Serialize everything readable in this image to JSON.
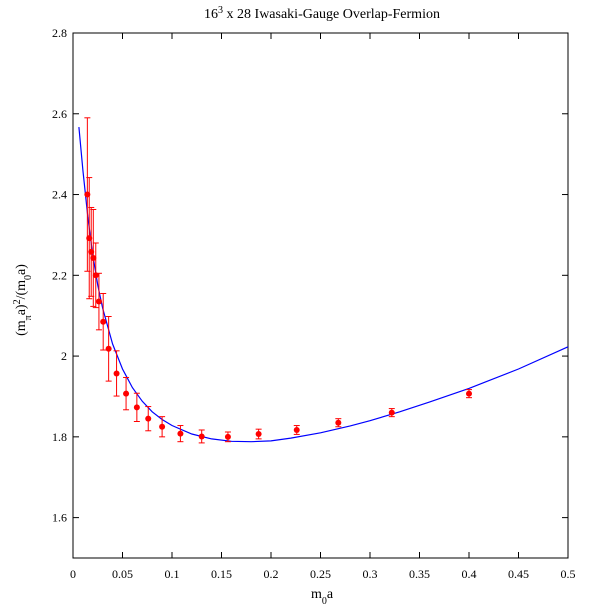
{
  "chart_data": {
    "type": "scatter",
    "title": {
      "base": "16",
      "sup": "3",
      "rest": " x 28 Iwasaki-Gauge Overlap-Fermion"
    },
    "xlabel": {
      "base": "m",
      "sub": "0",
      "rest": "a"
    },
    "ylabel": {
      "p1": "(m",
      "sub1": "π",
      "p2": "a)",
      "sup": "2",
      "p3": "/(m",
      "sub2": "0",
      "p4": "a)"
    },
    "xlim": [
      0,
      0.5
    ],
    "ylim": [
      1.5,
      2.8
    ],
    "x_ticks": [
      0,
      0.05,
      0.1,
      0.15,
      0.2,
      0.25,
      0.3,
      0.35,
      0.4,
      0.45,
      0.5
    ],
    "x_tick_labels": [
      "0",
      "0.05",
      "0.1",
      "0.15",
      "0.2",
      "0.25",
      "0.3",
      "0.35",
      "0.4",
      "0.45",
      "0.5"
    ],
    "y_ticks": [
      1.6,
      1.8,
      2.0,
      2.2,
      2.4,
      2.6,
      2.8
    ],
    "y_tick_labels": [
      "1.6",
      "1.8",
      "2",
      "2.2",
      "2.4",
      "2.6",
      "2.8"
    ],
    "grid": false,
    "points": {
      "color": "#ff0000",
      "x": [
        0.0145,
        0.0164,
        0.0184,
        0.0205,
        0.023,
        0.0262,
        0.0305,
        0.036,
        0.044,
        0.0536,
        0.0645,
        0.076,
        0.09,
        0.1085,
        0.13,
        0.1565,
        0.1875,
        0.226,
        0.268,
        0.322,
        0.4
      ],
      "y": [
        2.4,
        2.292,
        2.258,
        2.243,
        2.2,
        2.135,
        2.085,
        2.018,
        1.957,
        1.907,
        1.873,
        1.845,
        1.825,
        1.808,
        1.801,
        1.8,
        1.807,
        1.817,
        1.835,
        1.86,
        1.907
      ],
      "err": [
        0.19,
        0.15,
        0.11,
        0.12,
        0.08,
        0.07,
        0.07,
        0.08,
        0.056,
        0.04,
        0.035,
        0.03,
        0.025,
        0.02,
        0.016,
        0.012,
        0.012,
        0.011,
        0.01,
        0.01,
        0.01
      ]
    },
    "fit_curve": {
      "color": "#0000ff",
      "x": [
        0.006,
        0.01,
        0.015,
        0.02,
        0.025,
        0.03,
        0.04,
        0.05,
        0.06,
        0.07,
        0.08,
        0.09,
        0.1,
        0.12,
        0.14,
        0.16,
        0.18,
        0.2,
        0.22,
        0.25,
        0.28,
        0.3,
        0.33,
        0.36,
        0.4,
        0.45,
        0.5
      ],
      "y": [
        2.567,
        2.46,
        2.345,
        2.25,
        2.175,
        2.118,
        2.03,
        1.968,
        1.922,
        1.888,
        1.862,
        1.843,
        1.828,
        1.807,
        1.795,
        1.789,
        1.788,
        1.79,
        1.797,
        1.81,
        1.827,
        1.84,
        1.862,
        1.886,
        1.92,
        1.968,
        2.023
      ]
    }
  }
}
